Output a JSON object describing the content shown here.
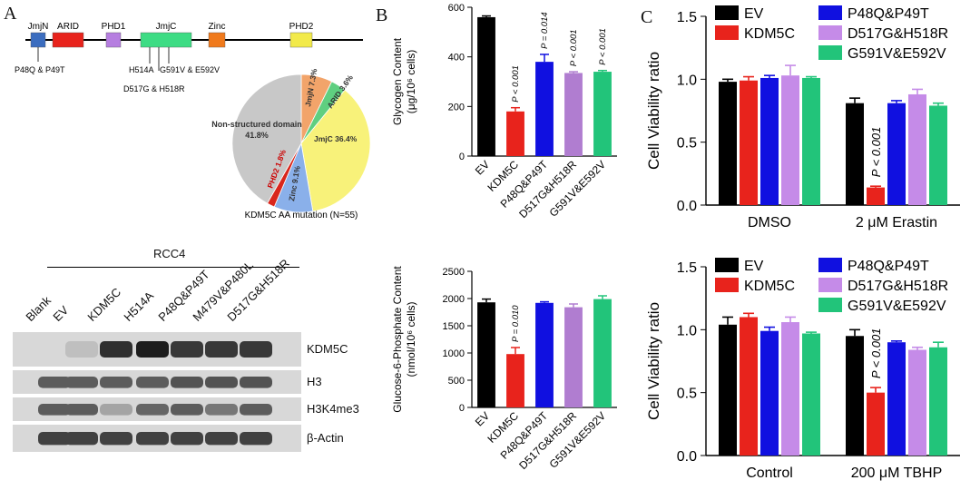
{
  "panels": {
    "a": "A",
    "b": "B",
    "c": "C"
  },
  "domain_map": {
    "domains": [
      {
        "name": "JmjN",
        "color": "#3b6dbf"
      },
      {
        "name": "ARID",
        "color": "#e8231c"
      },
      {
        "name": "PHD1",
        "color": "#b67ee0"
      },
      {
        "name": "JmjC",
        "color": "#3ddc84"
      },
      {
        "name": "Zinc",
        "color": "#f07a1c"
      },
      {
        "name": "PHD2",
        "color": "#f2ea4a"
      }
    ],
    "mutations": {
      "m1": "P48Q & P49T",
      "m2": "H514A",
      "m3": "G591V & E592V",
      "m4": "D517G & H518R"
    }
  },
  "pie": {
    "caption": "KDM5C AA mutation (N=55)",
    "slices": [
      {
        "label": "JmjN 7.3%",
        "value": 7.3,
        "color": "#f2a46a"
      },
      {
        "label": "ARID 3.6%",
        "value": 3.6,
        "color": "#5fcf80"
      },
      {
        "label": "JmjC 36.4%",
        "value": 36.4,
        "color": "#f8f27a"
      },
      {
        "label": "Zinc 9.1%",
        "value": 9.1,
        "color": "#8ab0ea"
      },
      {
        "label": "PHD2 1.8%",
        "value": 1.8,
        "color": "#d9261c"
      },
      {
        "label": "Non-structured domain 41.8%",
        "value": 41.8,
        "color": "#c8c8c8"
      }
    ]
  },
  "blot": {
    "title": "RCC4",
    "lanes": [
      "Blank",
      "EV",
      "KDM5C",
      "H514A",
      "P48Q&P49T",
      "M479V&P480L",
      "D517G&H518R"
    ],
    "rows": [
      {
        "label": "KDM5C",
        "intensity": [
          0.0,
          0.05,
          0.85,
          0.95,
          0.8,
          0.8,
          0.8
        ]
      },
      {
        "label": "H3",
        "intensity": [
          0.6,
          0.6,
          0.6,
          0.6,
          0.65,
          0.65,
          0.65
        ]
      },
      {
        "label": "H3K4me3",
        "intensity": [
          0.6,
          0.6,
          0.2,
          0.55,
          0.6,
          0.45,
          0.6
        ]
      },
      {
        "label": "β-Actin",
        "intensity": [
          0.75,
          0.75,
          0.75,
          0.75,
          0.75,
          0.75,
          0.75
        ]
      }
    ]
  },
  "chart_data": [
    {
      "type": "bar",
      "ylabel": "Glycogen Content (μg/10⁶ cells)",
      "ylim": [
        0,
        600
      ],
      "yticks": [
        0,
        200,
        400,
        600
      ],
      "categories": [
        "EV",
        "KDM5C",
        "P48Q&P49T",
        "D517G&H518R",
        "G591V&E592V"
      ],
      "values": [
        560,
        180,
        380,
        335,
        340
      ],
      "errors": [
        5,
        15,
        30,
        5,
        5
      ],
      "colors": [
        "#000000",
        "#e8231c",
        "#1010e0",
        "#b07dd0",
        "#22c47a"
      ],
      "annotations": [
        "",
        "P < 0.001",
        "P = 0.014",
        "P < 0.001",
        "P < 0.001"
      ]
    },
    {
      "type": "bar",
      "ylabel": "Glucose-6-Phosphate Content (nmol/10⁶ cells)",
      "ylim": [
        0,
        2500
      ],
      "yticks": [
        0,
        500,
        1000,
        1500,
        2000,
        2500
      ],
      "categories": [
        "EV",
        "KDM5C",
        "P48Q&P49T",
        "D517G&H518R",
        "G591V&E592V"
      ],
      "values": [
        1930,
        980,
        1920,
        1840,
        1990
      ],
      "errors": [
        60,
        120,
        20,
        60,
        60
      ],
      "colors": [
        "#000000",
        "#e8231c",
        "#1010e0",
        "#b07dd0",
        "#22c47a"
      ],
      "annotations": [
        "",
        "P = 0.010",
        "",
        "",
        ""
      ]
    },
    {
      "type": "bar",
      "ylabel": "Cell Viability ratio",
      "ylim": [
        0,
        1.5
      ],
      "yticks": [
        "0.0",
        "0.5",
        "1.0",
        "1.5"
      ],
      "groups": [
        "DMSO",
        "2 μM Erastin"
      ],
      "series": [
        {
          "name": "EV",
          "color": "#000000",
          "values": [
            0.98,
            0.81
          ],
          "errors": [
            0.02,
            0.04
          ]
        },
        {
          "name": "KDM5C",
          "color": "#e8231c",
          "values": [
            0.99,
            0.14
          ],
          "errors": [
            0.03,
            0.01
          ]
        },
        {
          "name": "P48Q&P49T",
          "color": "#1010e0",
          "values": [
            1.01,
            0.81
          ],
          "errors": [
            0.02,
            0.02
          ]
        },
        {
          "name": "D517G&H518R",
          "color": "#c58be8",
          "values": [
            1.03,
            0.88
          ],
          "errors": [
            0.08,
            0.04
          ]
        },
        {
          "name": "G591V&E592V",
          "color": "#22c47a",
          "values": [
            1.01,
            0.79
          ],
          "errors": [
            0.01,
            0.02
          ]
        }
      ],
      "annotation": {
        "text": "P < 0.001",
        "group": 1,
        "series": 1
      }
    },
    {
      "type": "bar",
      "ylabel": "Cell Viability ratio",
      "ylim": [
        0,
        1.5
      ],
      "yticks": [
        "0.0",
        "0.5",
        "1.0",
        "1.5"
      ],
      "groups": [
        "Control",
        "200 μM TBHP"
      ],
      "series": [
        {
          "name": "EV",
          "color": "#000000",
          "values": [
            1.04,
            0.95
          ],
          "errors": [
            0.06,
            0.05
          ]
        },
        {
          "name": "KDM5C",
          "color": "#e8231c",
          "values": [
            1.1,
            0.5
          ],
          "errors": [
            0.03,
            0.04
          ]
        },
        {
          "name": "P48Q&P49T",
          "color": "#1010e0",
          "values": [
            0.99,
            0.9
          ],
          "errors": [
            0.03,
            0.01
          ]
        },
        {
          "name": "D517G&H518R",
          "color": "#c58be8",
          "values": [
            1.06,
            0.84
          ],
          "errors": [
            0.04,
            0.02
          ]
        },
        {
          "name": "G591V&E592V",
          "color": "#22c47a",
          "values": [
            0.97,
            0.86
          ],
          "errors": [
            0.01,
            0.04
          ]
        }
      ],
      "annotation": {
        "text": "P < 0.001",
        "group": 1,
        "series": 1
      }
    }
  ]
}
